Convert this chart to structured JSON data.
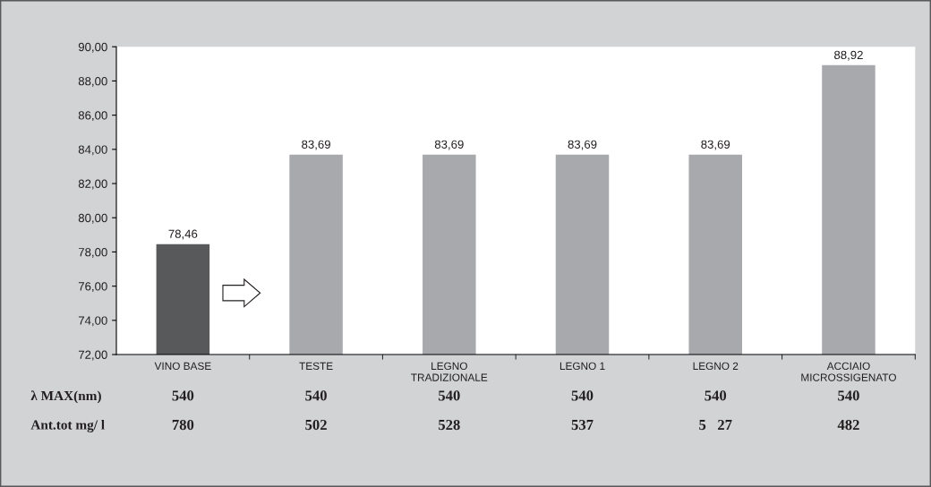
{
  "chart_data": {
    "type": "bar",
    "categories": [
      "VINO BASE",
      "TESTE",
      "LEGNO\nTRADIZIONALE",
      "LEGNO 1",
      "LEGNO 2",
      "ACCIAIO\nMICROSSIGENATO"
    ],
    "values": [
      78.46,
      83.69,
      83.69,
      83.69,
      83.69,
      88.92
    ],
    "colors": [
      "#58595b",
      "#a7a9ac",
      "#a7a9ac",
      "#a7a9ac",
      "#a7a9ac",
      "#a7a9ac"
    ],
    "value_labels": [
      "78,46",
      "83,69",
      "83,69",
      "83,69",
      "83,69",
      "88,92"
    ],
    "ylim": [
      72,
      90
    ],
    "yticks": [
      {
        "value": 72,
        "label": "72,00"
      },
      {
        "value": 74,
        "label": "74,00"
      },
      {
        "value": 76,
        "label": "76,00"
      },
      {
        "value": 78,
        "label": "78,00"
      },
      {
        "value": 80,
        "label": "80,00"
      },
      {
        "value": 82,
        "label": "82,00"
      },
      {
        "value": 84,
        "label": "84,00"
      },
      {
        "value": 86,
        "label": "86,00"
      },
      {
        "value": 88,
        "label": "88,00"
      },
      {
        "value": 90,
        "label": "90,00"
      }
    ],
    "grid": false,
    "annotations": [
      "λ MAX(nm)",
      "540",
      "540",
      "540",
      "540",
      "540",
      "540",
      "Ant.tot mg/ l",
      "780",
      "502",
      "528",
      "537",
      "5   27",
      "482"
    ]
  }
}
